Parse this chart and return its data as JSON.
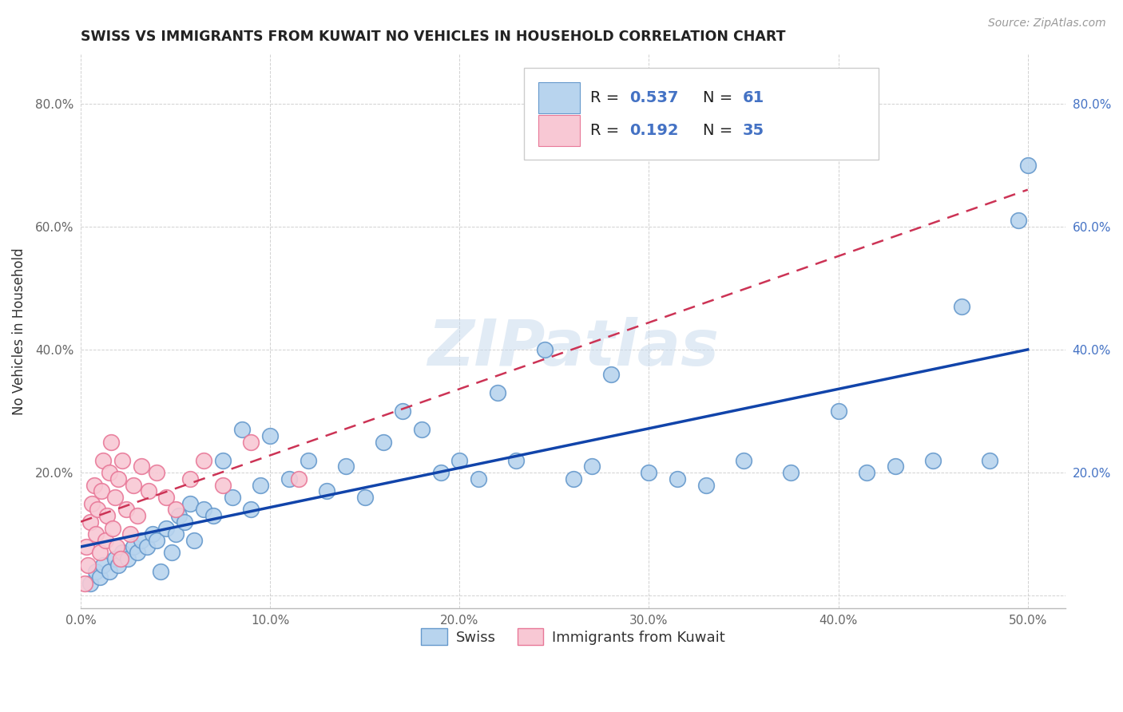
{
  "title": "SWISS VS IMMIGRANTS FROM KUWAIT NO VEHICLES IN HOUSEHOLD CORRELATION CHART",
  "source": "Source: ZipAtlas.com",
  "ylabel": "No Vehicles in Household",
  "xlim": [
    0.0,
    0.52
  ],
  "ylim": [
    -0.02,
    0.88
  ],
  "xticks": [
    0.0,
    0.1,
    0.2,
    0.3,
    0.4,
    0.5
  ],
  "yticks": [
    0.0,
    0.2,
    0.4,
    0.6,
    0.8
  ],
  "xticklabels": [
    "0.0%",
    "10.0%",
    "20.0%",
    "30.0%",
    "40.0%",
    "50.0%"
  ],
  "yticklabels": [
    "",
    "20.0%",
    "40.0%",
    "60.0%",
    "80.0%"
  ],
  "watermark": "ZIPatlas",
  "legend_swiss_R": "0.537",
  "legend_swiss_N": "61",
  "legend_kuwait_R": "0.192",
  "legend_kuwait_N": "35",
  "swiss_color": "#b8d4ee",
  "swiss_edge_color": "#6699cc",
  "kuwait_color": "#f8c8d4",
  "kuwait_edge_color": "#e87898",
  "swiss_line_color": "#1144aa",
  "kuwait_line_color": "#cc3355",
  "background_color": "#ffffff",
  "grid_color": "#cccccc",
  "title_color": "#222222",
  "axis_color": "#4472c4",
  "legend_r_color": "#4472c4",
  "swiss_x": [
    0.005,
    0.008,
    0.01,
    0.012,
    0.015,
    0.018,
    0.02,
    0.022,
    0.025,
    0.028,
    0.03,
    0.032,
    0.035,
    0.038,
    0.04,
    0.042,
    0.045,
    0.048,
    0.05,
    0.052,
    0.055,
    0.058,
    0.06,
    0.065,
    0.07,
    0.075,
    0.08,
    0.085,
    0.09,
    0.095,
    0.1,
    0.11,
    0.12,
    0.13,
    0.14,
    0.15,
    0.16,
    0.17,
    0.18,
    0.19,
    0.2,
    0.21,
    0.22,
    0.23,
    0.245,
    0.26,
    0.27,
    0.28,
    0.3,
    0.315,
    0.33,
    0.35,
    0.375,
    0.4,
    0.415,
    0.43,
    0.45,
    0.465,
    0.48,
    0.495,
    0.5
  ],
  "swiss_y": [
    0.02,
    0.04,
    0.03,
    0.05,
    0.04,
    0.06,
    0.05,
    0.07,
    0.06,
    0.08,
    0.07,
    0.09,
    0.08,
    0.1,
    0.09,
    0.04,
    0.11,
    0.07,
    0.1,
    0.13,
    0.12,
    0.15,
    0.09,
    0.14,
    0.13,
    0.22,
    0.16,
    0.27,
    0.14,
    0.18,
    0.26,
    0.19,
    0.22,
    0.17,
    0.21,
    0.16,
    0.25,
    0.3,
    0.27,
    0.2,
    0.22,
    0.19,
    0.33,
    0.22,
    0.4,
    0.19,
    0.21,
    0.36,
    0.2,
    0.19,
    0.18,
    0.22,
    0.2,
    0.3,
    0.2,
    0.21,
    0.22,
    0.47,
    0.22,
    0.61,
    0.7
  ],
  "kuwait_x": [
    0.002,
    0.003,
    0.004,
    0.005,
    0.006,
    0.007,
    0.008,
    0.009,
    0.01,
    0.011,
    0.012,
    0.013,
    0.014,
    0.015,
    0.016,
    0.017,
    0.018,
    0.019,
    0.02,
    0.021,
    0.022,
    0.024,
    0.026,
    0.028,
    0.03,
    0.032,
    0.036,
    0.04,
    0.045,
    0.05,
    0.058,
    0.065,
    0.075,
    0.09,
    0.115
  ],
  "kuwait_y": [
    0.02,
    0.08,
    0.05,
    0.12,
    0.15,
    0.18,
    0.1,
    0.14,
    0.07,
    0.17,
    0.22,
    0.09,
    0.13,
    0.2,
    0.25,
    0.11,
    0.16,
    0.08,
    0.19,
    0.06,
    0.22,
    0.14,
    0.1,
    0.18,
    0.13,
    0.21,
    0.17,
    0.2,
    0.16,
    0.14,
    0.19,
    0.22,
    0.18,
    0.25,
    0.19
  ]
}
